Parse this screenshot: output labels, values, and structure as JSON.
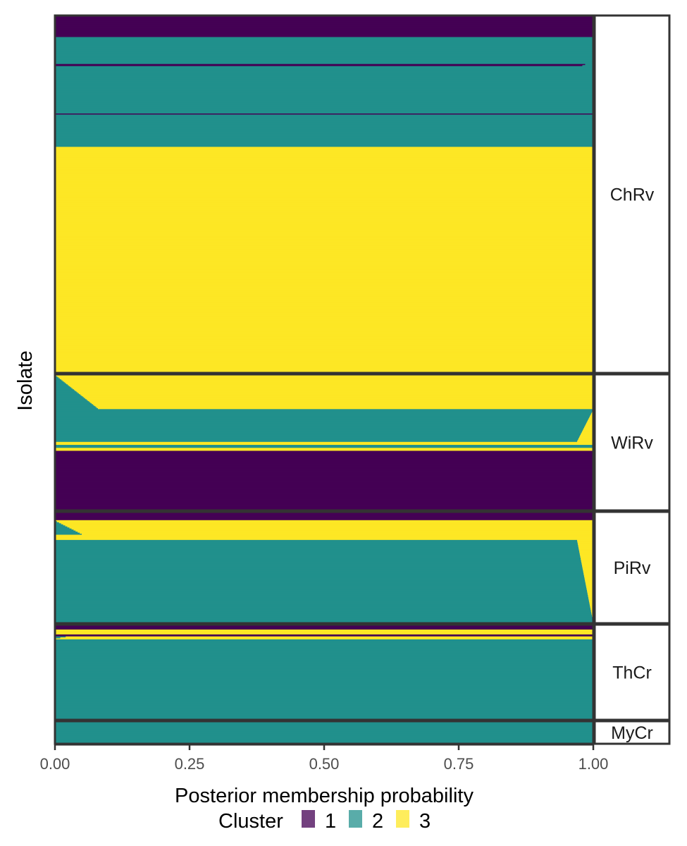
{
  "chart_data": {
    "type": "bar",
    "orientation": "horizontal-stacked",
    "xlabel": "Posterior membership probability",
    "ylabel": "Isolate",
    "xlim": [
      0,
      1
    ],
    "x_ticks": [
      "0.00",
      "0.25",
      "0.50",
      "0.75",
      "1.00"
    ],
    "legend": {
      "title": "Cluster",
      "placement": "bottom",
      "entries": [
        {
          "label": "1",
          "color": "#440154"
        },
        {
          "label": "2",
          "color": "#21908C"
        },
        {
          "label": "3",
          "color": "#FDE725"
        }
      ]
    },
    "colors": {
      "cluster_1": "#440154",
      "cluster_2": "#21908C",
      "cluster_3": "#FDE725",
      "panel_border": "#333333"
    },
    "facets": [
      {
        "name": "ChRv",
        "segments": [
          {
            "rows": 20,
            "cluster": "1",
            "p1": [
              1.0,
              1.0
            ],
            "p2": [
              0.0,
              0.0
            ]
          },
          {
            "rows": 25,
            "cluster": "2",
            "p1": [
              0.0,
              0.0
            ],
            "p2": [
              1.0,
              1.0
            ]
          },
          {
            "rows": 2,
            "cluster": "1",
            "p1": [
              0.985,
              0.98
            ],
            "p2": [
              0.015,
              0.02
            ]
          },
          {
            "rows": 44,
            "cluster": "2",
            "p1": [
              0.0,
              0.0
            ],
            "p2": [
              1.0,
              1.0
            ]
          },
          {
            "rows": 1,
            "cluster": "1",
            "p1": [
              1.0,
              1.0
            ],
            "p2": [
              0.0,
              0.0
            ]
          },
          {
            "rows": 30,
            "cluster": "2",
            "p1": [
              0.0,
              0.0
            ],
            "p2": [
              1.0,
              1.0
            ]
          },
          {
            "rows": 210,
            "cluster": "3",
            "p1": [
              0.0,
              0.0
            ],
            "p2": [
              0.015,
              0.005
            ],
            "p3_range": [
              0.0,
              0.02
            ],
            "p2_range": [
              0.0,
              0.98
            ]
          }
        ]
      },
      {
        "name": "WiRv",
        "segments": [
          {
            "rows": 35,
            "cluster": "3",
            "p1": [
              0.0,
              0.0
            ],
            "p2": [
              0.0,
              0.08
            ]
          },
          {
            "rows": 33,
            "cluster": "2",
            "p1": [
              0.0,
              0.0
            ],
            "p2": [
              1.0,
              0.97
            ]
          },
          {
            "rows": 3,
            "cluster": "3",
            "p1": [
              0.0,
              0.0
            ],
            "p2": [
              0.0,
              0.0
            ]
          },
          {
            "rows": 3,
            "cluster": "2",
            "p1": [
              0.0,
              0.0
            ],
            "p2": [
              1.0,
              1.0
            ]
          },
          {
            "rows": 3,
            "cluster": "3",
            "p1": [
              0.0,
              0.0
            ],
            "p2": [
              0.0,
              0.0
            ]
          },
          {
            "rows": 60,
            "cluster": "1",
            "p1": [
              1.0,
              1.0
            ],
            "p2": [
              0.0,
              0.0
            ]
          }
        ]
      },
      {
        "name": "PiRv",
        "segments": [
          {
            "rows": 8,
            "cluster": "1",
            "p1": [
              1.0,
              1.0
            ],
            "p2": [
              0.0,
              0.0
            ]
          },
          {
            "rows": 14,
            "cluster": "3",
            "p1": [
              0.0,
              0.0
            ],
            "p2": [
              0.0,
              0.05
            ]
          },
          {
            "rows": 5,
            "cluster": "3",
            "p1": [
              0.0,
              0.0
            ],
            "p2": [
              0.0,
              0.0
            ]
          },
          {
            "rows": 80,
            "cluster": "2",
            "p1": [
              0.0,
              0.0
            ],
            "p2": [
              0.97,
              1.0
            ]
          }
        ]
      },
      {
        "name": "ThCr",
        "segments": [
          {
            "rows": 5,
            "cluster": "1",
            "p1": [
              1.0,
              1.0
            ],
            "p2": [
              0.0,
              0.0
            ]
          },
          {
            "rows": 5,
            "cluster": "3",
            "p1": [
              0.0,
              0.0
            ],
            "p2": [
              0.0,
              0.0
            ]
          },
          {
            "rows": 2,
            "cluster": "1",
            "p1": [
              1.0,
              1.0
            ],
            "p2": [
              0.0,
              0.0
            ]
          },
          {
            "rows": 3,
            "cluster": "3",
            "p1": [
              0.0,
              0.0
            ],
            "p2": [
              0.02,
              0.0
            ]
          },
          {
            "rows": 82,
            "cluster": "2",
            "p1": [
              0.0,
              0.0
            ],
            "p2": [
              1.0,
              1.0
            ]
          }
        ]
      },
      {
        "name": "MyCr",
        "segments": [
          {
            "rows": 20,
            "cluster": "2",
            "p1": [
              0.0,
              0.0
            ],
            "p2": [
              1.0,
              1.0
            ]
          }
        ]
      }
    ]
  }
}
